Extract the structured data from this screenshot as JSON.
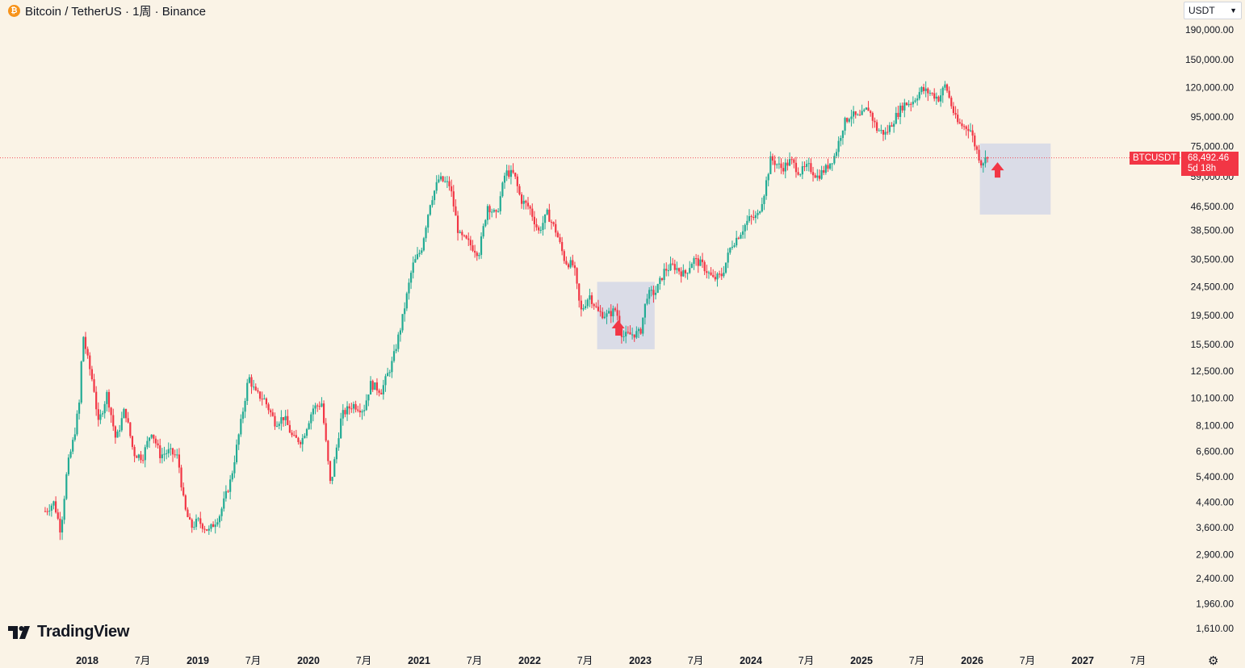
{
  "header": {
    "title": "Bitcoin / TetherUS · 1周 · Binance",
    "coin_glyph": "₿"
  },
  "toolbar": {
    "currency": "USDT"
  },
  "branding": {
    "logo_text": "TradingView"
  },
  "price_label": {
    "symbol": "BTCUSDT",
    "price": "68,492.46",
    "countdown": "5d 18h",
    "color": "#f23645"
  },
  "colors": {
    "up": "#22ab94",
    "down": "#f23645",
    "box": "#c9cfe8",
    "arrow": "#f23645"
  },
  "chart_data": {
    "type": "line",
    "scale": "log",
    "y_ticks": [
      "1,610.00",
      "1,960.00",
      "2,400.00",
      "2,900.00",
      "3,600.00",
      "4,400.00",
      "5,400.00",
      "6,600.00",
      "8,100.00",
      "10,100.00",
      "12,500.00",
      "15,500.00",
      "19,500.00",
      "24,500.00",
      "30,500.00",
      "38,500.00",
      "46,500.00",
      "59,000.00",
      "75,000.00",
      "95,000.00",
      "120,000.00",
      "150,000.00",
      "190,000.00"
    ],
    "x_ticks": [
      {
        "label": "2018",
        "t": 2018.0,
        "bold": true
      },
      {
        "label": "7月",
        "t": 2018.5,
        "bold": false
      },
      {
        "label": "2019",
        "t": 2019.0,
        "bold": true
      },
      {
        "label": "7月",
        "t": 2019.5,
        "bold": false
      },
      {
        "label": "2020",
        "t": 2020.0,
        "bold": true
      },
      {
        "label": "7月",
        "t": 2020.5,
        "bold": false
      },
      {
        "label": "2021",
        "t": 2021.0,
        "bold": true
      },
      {
        "label": "7月",
        "t": 2021.5,
        "bold": false
      },
      {
        "label": "2022",
        "t": 2022.0,
        "bold": true
      },
      {
        "label": "7月",
        "t": 2022.5,
        "bold": false
      },
      {
        "label": "2023",
        "t": 2023.0,
        "bold": true
      },
      {
        "label": "7月",
        "t": 2023.5,
        "bold": false
      },
      {
        "label": "2024",
        "t": 2024.0,
        "bold": true
      },
      {
        "label": "7月",
        "t": 2024.5,
        "bold": false
      },
      {
        "label": "2025",
        "t": 2025.0,
        "bold": true
      },
      {
        "label": "7月",
        "t": 2025.5,
        "bold": false
      },
      {
        "label": "2026",
        "t": 2026.0,
        "bold": true
      },
      {
        "label": "7月",
        "t": 2026.5,
        "bold": false
      },
      {
        "label": "2027",
        "t": 2027.0,
        "bold": true
      },
      {
        "label": "7月",
        "t": 2027.5,
        "bold": false
      }
    ],
    "current_price": 68492.46,
    "series": [
      {
        "values": [
          [
            2017.62,
            4100
          ],
          [
            2017.7,
            4400
          ],
          [
            2017.76,
            3500
          ],
          [
            2017.82,
            5800
          ],
          [
            2017.88,
            7400
          ],
          [
            2017.93,
            9800
          ],
          [
            2017.96,
            17000
          ],
          [
            2018.0,
            14000
          ],
          [
            2018.06,
            11000
          ],
          [
            2018.1,
            8200
          ],
          [
            2018.18,
            10500
          ],
          [
            2018.26,
            7200
          ],
          [
            2018.34,
            9300
          ],
          [
            2018.42,
            6500
          ],
          [
            2018.5,
            6300
          ],
          [
            2018.58,
            7800
          ],
          [
            2018.66,
            6400
          ],
          [
            2018.74,
            6600
          ],
          [
            2018.82,
            6300
          ],
          [
            2018.88,
            4200
          ],
          [
            2018.94,
            3600
          ],
          [
            2019.0,
            3800
          ],
          [
            2019.1,
            3500
          ],
          [
            2019.2,
            4000
          ],
          [
            2019.3,
            5300
          ],
          [
            2019.38,
            7900
          ],
          [
            2019.46,
            12000
          ],
          [
            2019.52,
            10500
          ],
          [
            2019.6,
            10000
          ],
          [
            2019.7,
            8300
          ],
          [
            2019.78,
            8700
          ],
          [
            2019.86,
            7300
          ],
          [
            2019.94,
            7200
          ],
          [
            2020.04,
            9300
          ],
          [
            2020.12,
            9700
          ],
          [
            2020.2,
            5000
          ],
          [
            2020.3,
            8800
          ],
          [
            2020.4,
            9600
          ],
          [
            2020.5,
            9200
          ],
          [
            2020.56,
            11300
          ],
          [
            2020.66,
            10700
          ],
          [
            2020.76,
            13500
          ],
          [
            2020.84,
            18200
          ],
          [
            2020.94,
            28900
          ],
          [
            2021.02,
            33000
          ],
          [
            2021.1,
            48000
          ],
          [
            2021.18,
            58000
          ],
          [
            2021.28,
            55000
          ],
          [
            2021.36,
            37000
          ],
          [
            2021.44,
            35000
          ],
          [
            2021.54,
            32000
          ],
          [
            2021.62,
            47000
          ],
          [
            2021.7,
            43000
          ],
          [
            2021.78,
            61000
          ],
          [
            2021.86,
            60000
          ],
          [
            2021.92,
            49000
          ],
          [
            2022.0,
            46000
          ],
          [
            2022.08,
            38000
          ],
          [
            2022.16,
            44000
          ],
          [
            2022.24,
            38000
          ],
          [
            2022.32,
            30000
          ],
          [
            2022.4,
            29000
          ],
          [
            2022.46,
            20000
          ],
          [
            2022.54,
            23000
          ],
          [
            2022.62,
            20000
          ],
          [
            2022.7,
            19500
          ],
          [
            2022.78,
            20500
          ],
          [
            2022.84,
            16500
          ],
          [
            2022.92,
            16800
          ],
          [
            2023.0,
            17000
          ],
          [
            2023.06,
            23000
          ],
          [
            2023.14,
            23500
          ],
          [
            2023.22,
            28000
          ],
          [
            2023.3,
            29000
          ],
          [
            2023.4,
            27000
          ],
          [
            2023.48,
            30500
          ],
          [
            2023.56,
            29200
          ],
          [
            2023.66,
            26000
          ],
          [
            2023.74,
            27000
          ],
          [
            2023.82,
            34000
          ],
          [
            2023.9,
            37500
          ],
          [
            2023.98,
            42000
          ],
          [
            2024.06,
            43000
          ],
          [
            2024.12,
            52000
          ],
          [
            2024.18,
            68000
          ],
          [
            2024.28,
            63000
          ],
          [
            2024.36,
            67000
          ],
          [
            2024.44,
            61000
          ],
          [
            2024.52,
            64000
          ],
          [
            2024.6,
            59000
          ],
          [
            2024.68,
            63000
          ],
          [
            2024.76,
            70000
          ],
          [
            2024.84,
            90000
          ],
          [
            2024.9,
            97000
          ],
          [
            2024.98,
            94000
          ],
          [
            2025.06,
            102000
          ],
          [
            2025.14,
            86000
          ],
          [
            2025.22,
            83000
          ],
          [
            2025.3,
            94000
          ],
          [
            2025.38,
            105000
          ],
          [
            2025.46,
            107000
          ],
          [
            2025.54,
            118000
          ],
          [
            2025.62,
            115000
          ],
          [
            2025.7,
            110000
          ],
          [
            2025.76,
            123000
          ],
          [
            2025.8,
            108000
          ],
          [
            2025.86,
            91000
          ],
          [
            2025.92,
            88000
          ],
          [
            2025.98,
            87000
          ],
          [
            2026.02,
            77000
          ],
          [
            2026.08,
            66000
          ],
          [
            2026.14,
            68492
          ]
        ]
      }
    ],
    "annotations": [
      {
        "type": "box",
        "t1": 2022.61,
        "t2": 2023.13,
        "p_high": 25500,
        "p_low": 14900
      },
      {
        "type": "box",
        "t1": 2026.07,
        "t2": 2026.71,
        "p_high": 76800,
        "p_low": 43600
      },
      {
        "type": "arrow",
        "t": 2022.8,
        "p": 17600
      },
      {
        "type": "arrow",
        "t": 2026.23,
        "p": 62000
      }
    ]
  }
}
